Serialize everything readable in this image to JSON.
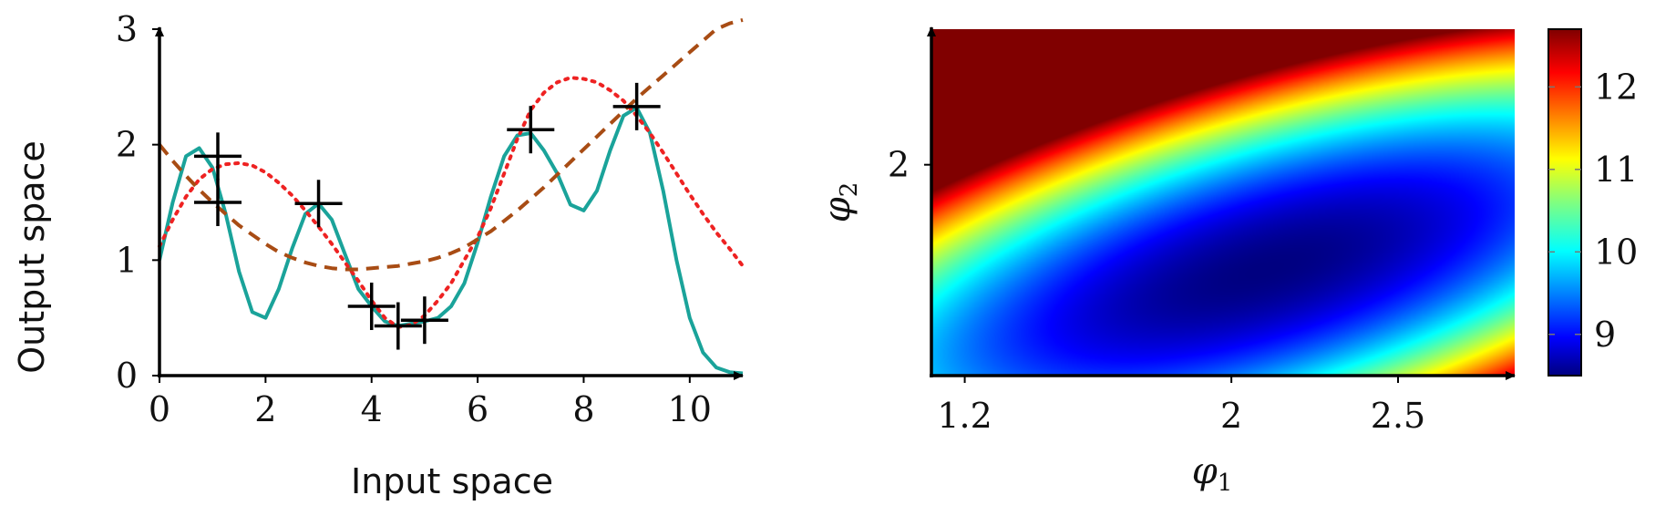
{
  "chart_data": [
    {
      "type": "line",
      "xlabel": "Input space",
      "ylabel": "Output space",
      "xlim": [
        0,
        11
      ],
      "ylim": [
        0,
        3
      ],
      "xticks": [
        "0",
        "2",
        "4",
        "6",
        "8",
        "10"
      ],
      "yticks": [
        "0",
        "1",
        "2",
        "3"
      ],
      "x": [
        0,
        0.25,
        0.5,
        0.75,
        1,
        1.25,
        1.5,
        1.75,
        2,
        2.25,
        2.5,
        2.75,
        3,
        3.25,
        3.5,
        3.75,
        4,
        4.25,
        4.5,
        4.75,
        5,
        5.25,
        5.5,
        5.75,
        6,
        6.25,
        6.5,
        6.75,
        7,
        7.25,
        7.5,
        7.75,
        8,
        8.25,
        8.5,
        8.75,
        9,
        9.25,
        9.5,
        9.75,
        10,
        10.25,
        10.5,
        10.75,
        11
      ],
      "series": [
        {
          "style": "solid",
          "color": "#1aa39a",
          "values": [
            1.0,
            1.5,
            1.9,
            1.97,
            1.8,
            1.4,
            0.9,
            0.55,
            0.5,
            0.75,
            1.1,
            1.4,
            1.49,
            1.35,
            1.05,
            0.75,
            0.6,
            0.47,
            0.43,
            0.45,
            0.47,
            0.5,
            0.6,
            0.8,
            1.15,
            1.55,
            1.9,
            2.08,
            2.1,
            1.95,
            1.75,
            1.48,
            1.43,
            1.6,
            1.95,
            2.25,
            2.32,
            2.1,
            1.6,
            1.0,
            0.5,
            0.2,
            0.07,
            0.03,
            0.02
          ]
        },
        {
          "style": "dotted",
          "color": "#ee2222",
          "values": [
            1.12,
            1.35,
            1.55,
            1.7,
            1.79,
            1.83,
            1.84,
            1.82,
            1.76,
            1.67,
            1.56,
            1.43,
            1.29,
            1.14,
            0.98,
            0.82,
            0.65,
            0.5,
            0.42,
            0.44,
            0.52,
            0.65,
            0.8,
            1.0,
            1.2,
            1.45,
            1.75,
            2.05,
            2.3,
            2.45,
            2.54,
            2.58,
            2.57,
            2.54,
            2.47,
            2.38,
            2.25,
            2.1,
            1.93,
            1.75,
            1.57,
            1.4,
            1.24,
            1.1,
            0.95
          ]
        },
        {
          "style": "dashed",
          "color": "#a84c14",
          "values": [
            2.0,
            1.86,
            1.73,
            1.61,
            1.5,
            1.4,
            1.3,
            1.22,
            1.14,
            1.07,
            1.02,
            0.98,
            0.95,
            0.93,
            0.92,
            0.92,
            0.93,
            0.94,
            0.95,
            0.97,
            0.99,
            1.02,
            1.06,
            1.11,
            1.18,
            1.25,
            1.34,
            1.43,
            1.53,
            1.63,
            1.74,
            1.85,
            1.96,
            2.07,
            2.18,
            2.29,
            2.4,
            2.5,
            2.6,
            2.7,
            2.8,
            2.9,
            3.0,
            3.05,
            3.08
          ]
        }
      ],
      "points": {
        "marker": "+",
        "x": [
          1.1,
          1.1,
          3.0,
          4.0,
          4.5,
          5.0,
          7.0,
          9.0
        ],
        "y": [
          1.9,
          1.5,
          1.49,
          0.6,
          0.43,
          0.48,
          2.13,
          2.33
        ]
      }
    },
    {
      "type": "heatmap",
      "xlabel": "φ",
      "xlabel_sub": "1",
      "ylabel": "φ",
      "ylabel_sub": "2",
      "xlim": [
        1.1,
        2.85
      ],
      "ylim": [
        1.3,
        2.45
      ],
      "xticks": [
        1.2,
        2,
        2.5
      ],
      "xtick_labels": [
        "1.2",
        "2",
        "2.5"
      ],
      "yticks": [
        2
      ],
      "ytick_labels": [
        "2"
      ],
      "colormap": "jet",
      "zlim": [
        8.5,
        12.7
      ],
      "minimum": {
        "x": 2.1,
        "y": 1.65,
        "z": 8.5
      },
      "colorbar_ticks": [
        9,
        10,
        11,
        12
      ],
      "colorbar_tick_labels": [
        "9",
        "10",
        "11",
        "12"
      ]
    }
  ]
}
